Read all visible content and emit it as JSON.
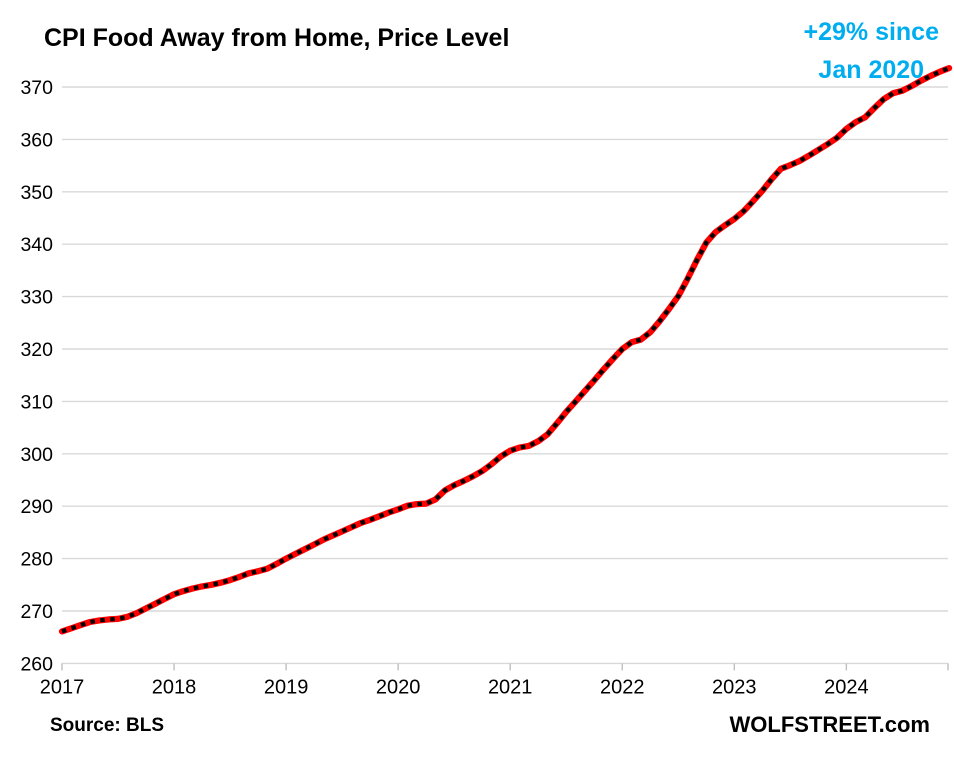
{
  "chart_data": {
    "type": "line",
    "title": "CPI Food Away from Home, Price Level",
    "annotation": {
      "line1": "+29% since",
      "line2": "Jan 2020",
      "color": "#00AEEF"
    },
    "x_start_label": "Jan 2017",
    "x_tick_years": [
      "2017",
      "2018",
      "2019",
      "2020",
      "2021",
      "2022",
      "2023",
      "2024"
    ],
    "y_ticks": [
      260,
      270,
      280,
      290,
      300,
      310,
      320,
      330,
      340,
      350,
      360,
      370
    ],
    "ylim": [
      260,
      370
    ],
    "grid": "horizontal",
    "legend": "none",
    "line_style": {
      "color": "#FF0000",
      "dash_overlay_color": "#000000",
      "grid_color": "#D9D9D9",
      "axis_tick_color": "#BFBFBF"
    },
    "series": [
      {
        "name": "CPI Food Away from Home",
        "start_month": "2017-01",
        "monthly_values": [
          266.1,
          266.7,
          267.3,
          267.9,
          268.2,
          268.4,
          268.5,
          268.9,
          269.6,
          270.5,
          271.4,
          272.3,
          273.2,
          273.8,
          274.3,
          274.7,
          275.0,
          275.4,
          275.9,
          276.5,
          277.2,
          277.6,
          278.1,
          279.0,
          280.0,
          280.9,
          281.8,
          282.7,
          283.6,
          284.4,
          285.2,
          286.0,
          286.8,
          287.4,
          288.1,
          288.8,
          289.4,
          290.1,
          290.4,
          290.5,
          291.3,
          293.0,
          294.0,
          294.8,
          295.7,
          296.7,
          298.0,
          299.5,
          300.6,
          301.2,
          301.5,
          302.4,
          303.7,
          305.8,
          308.0,
          310.0,
          312.0,
          314.0,
          316.1,
          318.1,
          320.0,
          321.3,
          321.8,
          323.2,
          325.3,
          327.6,
          330.1,
          333.4,
          337.0,
          340.3,
          342.3,
          343.6,
          344.8,
          346.3,
          348.2,
          350.2,
          352.4,
          354.4,
          355.1,
          355.9,
          356.9,
          358.0,
          359.1,
          360.3,
          362.0,
          363.3,
          364.2,
          366.0,
          367.7,
          368.8,
          369.3,
          370.2,
          371.2,
          372.1,
          372.9,
          373.6
        ]
      }
    ]
  },
  "footer": {
    "source": "Source: BLS",
    "brand": "WOLFSTREET.com"
  }
}
